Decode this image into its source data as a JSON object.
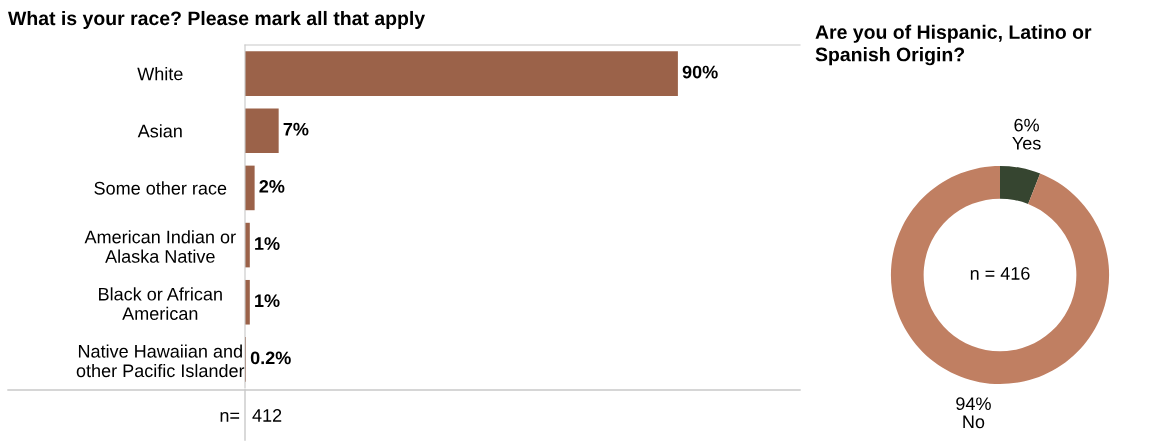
{
  "chart_data": [
    {
      "type": "bar",
      "orientation": "horizontal",
      "title": "What is your race? Please mark all that apply",
      "categories": [
        "White",
        "Asian",
        "Some other race",
        "American Indian or\nAlaska Native",
        "Black or African\nAmerican",
        "Native Hawaiian and\nother Pacific Islander"
      ],
      "values": [
        90,
        7,
        2,
        1,
        1,
        0.2
      ],
      "color": "#9b6249",
      "value_labels": [
        "90%",
        "7%",
        "2%",
        "1%",
        "1%",
        "0.2%"
      ],
      "annotations": [
        "n=",
        "412"
      ],
      "grid": false,
      "legend": false
    },
    {
      "type": "donut",
      "title": "Are you of Hispanic, Latino or\nSpanish Origin?",
      "categories": [
        "Yes",
        "No"
      ],
      "values": [
        6,
        94
      ],
      "colors": [
        "#364530",
        "#c07f62"
      ],
      "value_labels": [
        "6%",
        "94%"
      ],
      "annotations": [
        "n = 416"
      ],
      "legend": false
    }
  ]
}
